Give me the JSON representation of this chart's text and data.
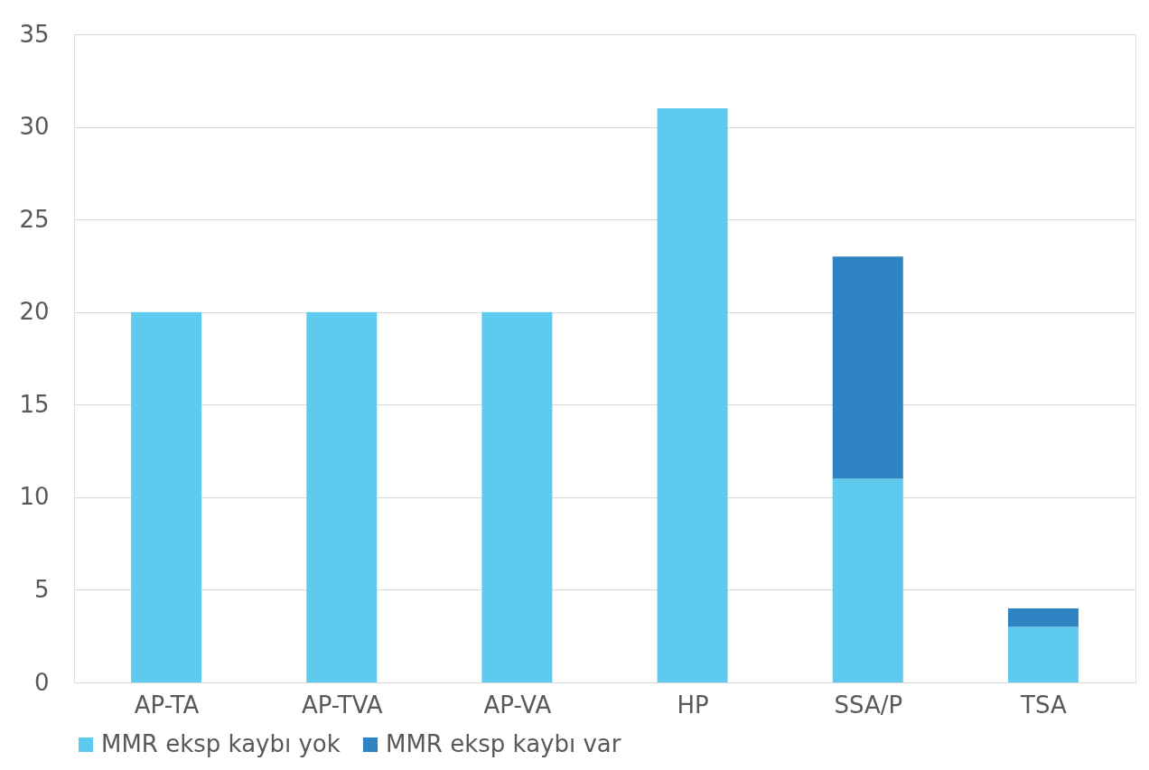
{
  "chart_data": {
    "type": "bar",
    "stacked": true,
    "categories": [
      "AP-TA",
      "AP-TVA",
      "AP-VA",
      "HP",
      "SSA/P",
      "TSA"
    ],
    "series": [
      {
        "name": "MMR eksp kaybı yok",
        "color": "#5ecbee",
        "values": [
          20,
          20,
          20,
          31,
          11,
          3
        ]
      },
      {
        "name": "MMR eksp kaybı var",
        "color": "#2e83c3",
        "values": [
          null,
          null,
          null,
          null,
          12,
          1
        ]
      }
    ],
    "ylim": [
      0,
      35
    ],
    "yticks": [
      0,
      5,
      10,
      15,
      20,
      25,
      30,
      35
    ],
    "grid": "y",
    "legend": "bottom"
  }
}
